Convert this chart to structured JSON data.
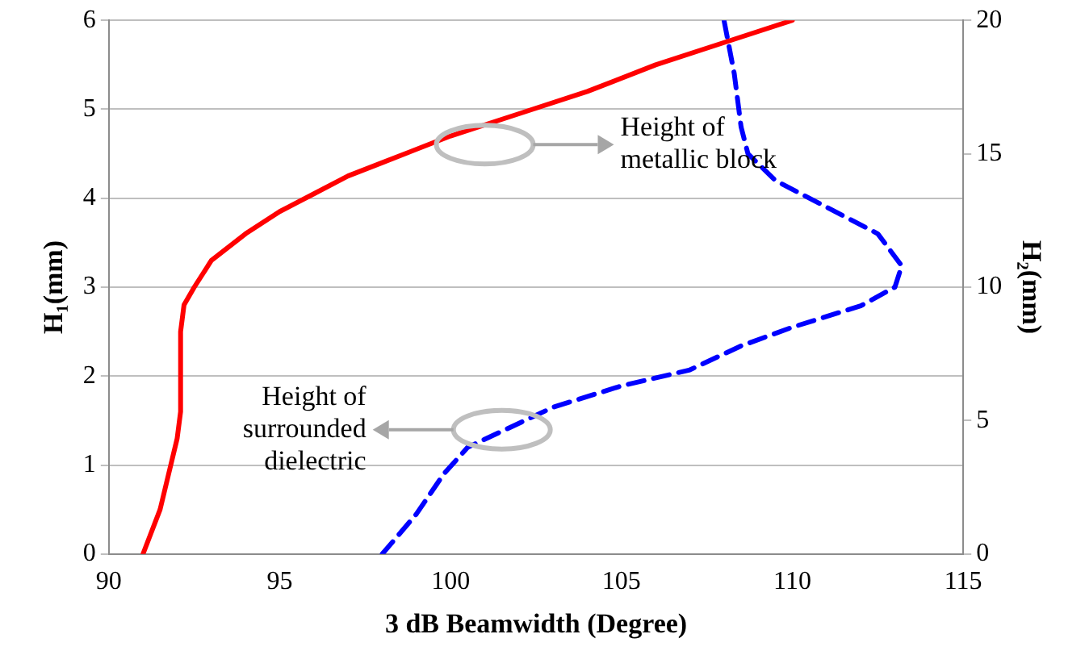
{
  "chart_data": {
    "type": "line",
    "xlabel": "3 dB Beamwidth (Degree)",
    "ylabel": "H₁(mm)",
    "y2label": "H₂(mm)",
    "xlim": [
      90,
      115
    ],
    "xticks": [
      90,
      95,
      100,
      105,
      110,
      115
    ],
    "ylim": [
      0,
      6
    ],
    "yticks": [
      0,
      1,
      2,
      3,
      4,
      5,
      6
    ],
    "y2lim": [
      0,
      20
    ],
    "y2ticks": [
      0,
      5,
      10,
      15,
      20
    ],
    "grid": "y",
    "legend": false,
    "marker": "none",
    "series": [
      {
        "color": "#ff0000",
        "line_style": "solid",
        "x": [
          91,
          91.5,
          92,
          92.1,
          92.1,
          92.2,
          92.5,
          93,
          94,
          95,
          96,
          97,
          98,
          100,
          102,
          104,
          106,
          108,
          110
        ],
        "values": [
          0,
          0.5,
          1.3,
          1.6,
          2.5,
          2.8,
          3.0,
          3.3,
          3.6,
          3.85,
          4.05,
          4.25,
          4.4,
          4.7,
          4.95,
          5.2,
          5.5,
          5.75,
          6.0
        ]
      },
      {
        "color": "#0000ff",
        "line_style": "dashed",
        "axis": "y2",
        "x": [
          98,
          99,
          99.8,
          100.5,
          101.5,
          103,
          105,
          107,
          108.5,
          110,
          112,
          113,
          113.2,
          112.5,
          111,
          109.5,
          108.7,
          108.5,
          108.3,
          108
        ],
        "values": [
          0,
          1.5,
          3,
          4,
          4.6,
          5.5,
          6.3,
          6.9,
          7.8,
          8.5,
          9.3,
          10.0,
          10.8,
          12,
          13,
          14,
          15,
          16,
          18,
          20
        ]
      }
    ],
    "annotations": [
      "Height of metallic block",
      "Height of surrounded dielectric"
    ]
  }
}
